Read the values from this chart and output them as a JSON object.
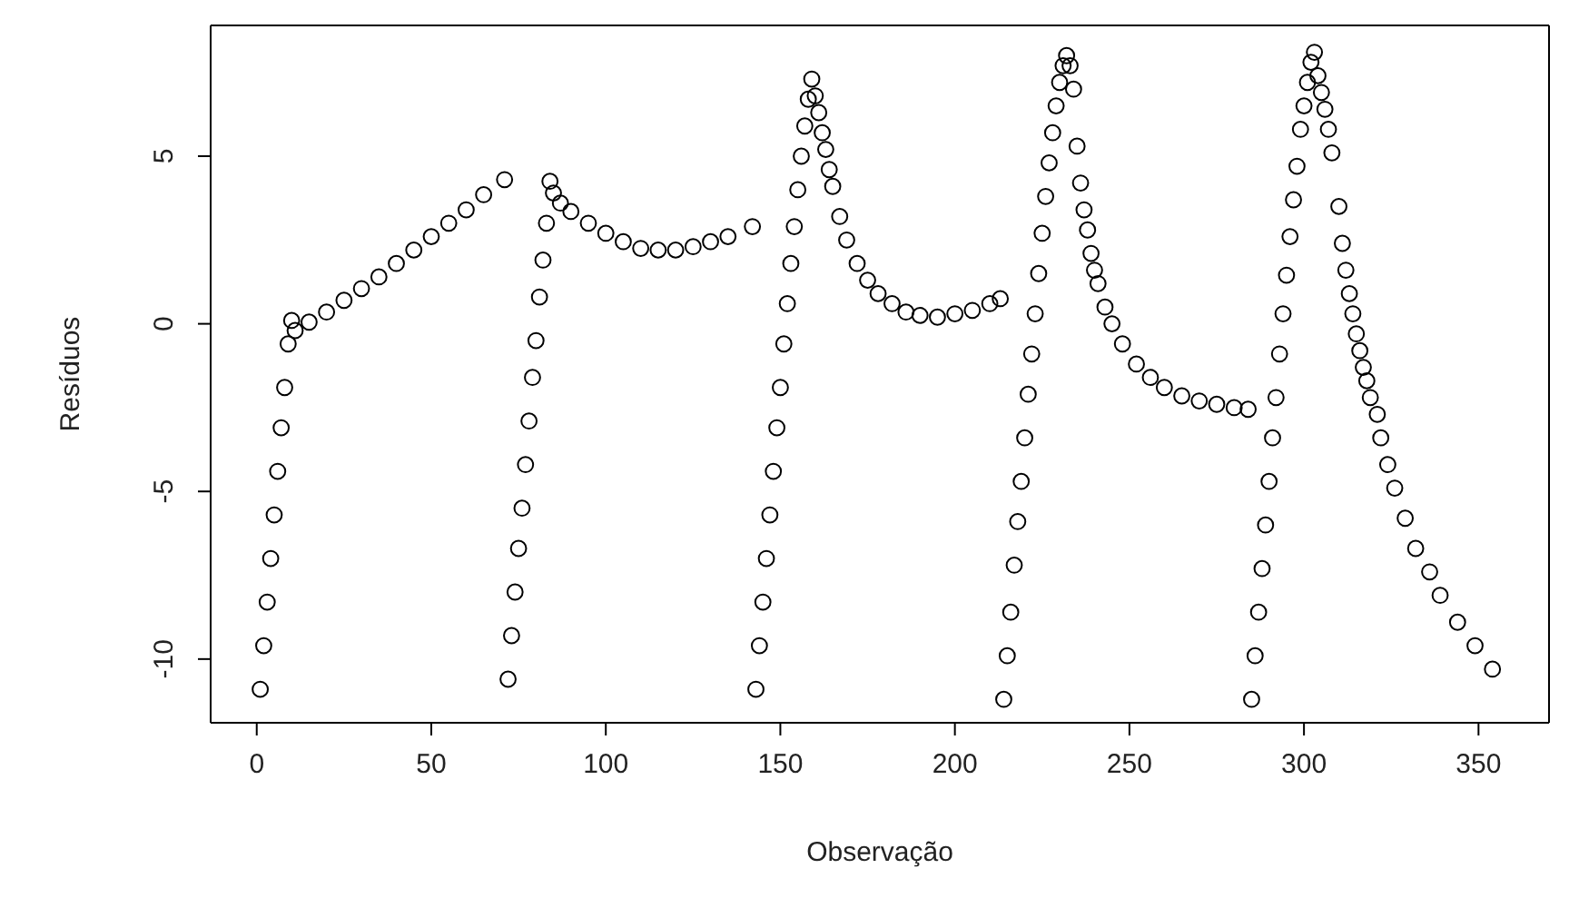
{
  "chart_data": {
    "type": "scatter",
    "xlabel": "Observação",
    "ylabel": "Resíduos",
    "color": "#000000",
    "marker": "circle",
    "x": [
      1,
      2,
      3,
      4,
      5,
      6,
      7,
      8,
      9,
      10,
      11,
      15,
      20,
      25,
      30,
      35,
      40,
      45,
      50,
      55,
      60,
      65,
      71,
      72,
      73,
      74,
      75,
      76,
      77,
      78,
      79,
      80,
      81,
      82,
      83,
      84,
      85,
      87,
      90,
      95,
      100,
      105,
      110,
      115,
      120,
      125,
      130,
      135,
      142,
      143,
      144,
      145,
      146,
      147,
      148,
      149,
      150,
      151,
      152,
      153,
      154,
      155,
      156,
      157,
      158,
      159,
      160,
      161,
      162,
      163,
      164,
      165,
      167,
      169,
      172,
      175,
      178,
      182,
      186,
      190,
      195,
      200,
      205,
      210,
      213,
      214,
      215,
      216,
      217,
      218,
      219,
      220,
      221,
      222,
      223,
      224,
      225,
      226,
      227,
      228,
      229,
      230,
      231,
      232,
      233,
      234,
      235,
      236,
      237,
      238,
      239,
      240,
      241,
      243,
      245,
      248,
      252,
      256,
      260,
      265,
      270,
      275,
      280,
      284,
      285,
      286,
      287,
      288,
      289,
      290,
      291,
      292,
      293,
      294,
      295,
      296,
      297,
      298,
      299,
      300,
      301,
      302,
      303,
      304,
      305,
      306,
      307,
      308,
      310,
      311,
      312,
      313,
      314,
      315,
      316,
      317,
      318,
      319,
      321,
      322,
      324,
      326,
      329,
      332,
      336,
      339,
      344,
      349,
      354
    ],
    "values": [
      -10.9,
      -9.6,
      -8.3,
      -7.0,
      -5.7,
      -4.4,
      -3.1,
      -1.9,
      -0.6,
      0.1,
      -0.2,
      0.05,
      0.35,
      0.7,
      1.05,
      1.4,
      1.8,
      2.2,
      2.6,
      3.0,
      3.4,
      3.85,
      4.3,
      -10.6,
      -9.3,
      -8.0,
      -6.7,
      -5.5,
      -4.2,
      -2.9,
      -1.6,
      -0.5,
      0.8,
      1.9,
      3.0,
      4.25,
      3.9,
      3.6,
      3.35,
      3.0,
      2.7,
      2.45,
      2.25,
      2.2,
      2.2,
      2.3,
      2.45,
      2.6,
      2.9,
      -10.9,
      -9.6,
      -8.3,
      -7.0,
      -5.7,
      -4.4,
      -3.1,
      -1.9,
      -0.6,
      0.6,
      1.8,
      2.9,
      4.0,
      5.0,
      5.9,
      6.7,
      7.3,
      6.8,
      6.3,
      5.7,
      5.2,
      4.6,
      4.1,
      3.2,
      2.5,
      1.8,
      1.3,
      0.9,
      0.6,
      0.35,
      0.25,
      0.2,
      0.3,
      0.4,
      0.6,
      0.75,
      -11.2,
      -9.9,
      -8.6,
      -7.2,
      -5.9,
      -4.7,
      -3.4,
      -2.1,
      -0.9,
      0.3,
      1.5,
      2.7,
      3.8,
      4.8,
      5.7,
      6.5,
      7.2,
      7.7,
      8.0,
      7.7,
      7.0,
      5.3,
      4.2,
      3.4,
      2.8,
      2.1,
      1.6,
      1.2,
      0.5,
      0.0,
      -0.6,
      -1.2,
      -1.6,
      -1.9,
      -2.15,
      -2.3,
      -2.4,
      -2.5,
      -2.55,
      -11.2,
      -9.9,
      -8.6,
      -7.3,
      -6.0,
      -4.7,
      -3.4,
      -2.2,
      -0.9,
      0.3,
      1.45,
      2.6,
      3.7,
      4.7,
      5.8,
      6.5,
      7.2,
      7.8,
      8.1,
      7.4,
      6.9,
      6.4,
      5.8,
      5.1,
      3.5,
      2.4,
      1.6,
      0.9,
      0.3,
      -0.3,
      -0.8,
      -1.3,
      -1.7,
      -2.2,
      -2.7,
      -3.4,
      -4.2,
      -4.9,
      -5.8,
      -6.7,
      -7.4,
      -8.1,
      -8.9,
      -9.6,
      -10.3
    ],
    "xlim": [
      -13.2,
      370.2
    ],
    "ylim": [
      -11.9,
      8.9
    ],
    "xticks": [
      0,
      50,
      100,
      150,
      200,
      250,
      300,
      350
    ],
    "yticks": [
      -10,
      -5,
      0,
      5
    ]
  }
}
